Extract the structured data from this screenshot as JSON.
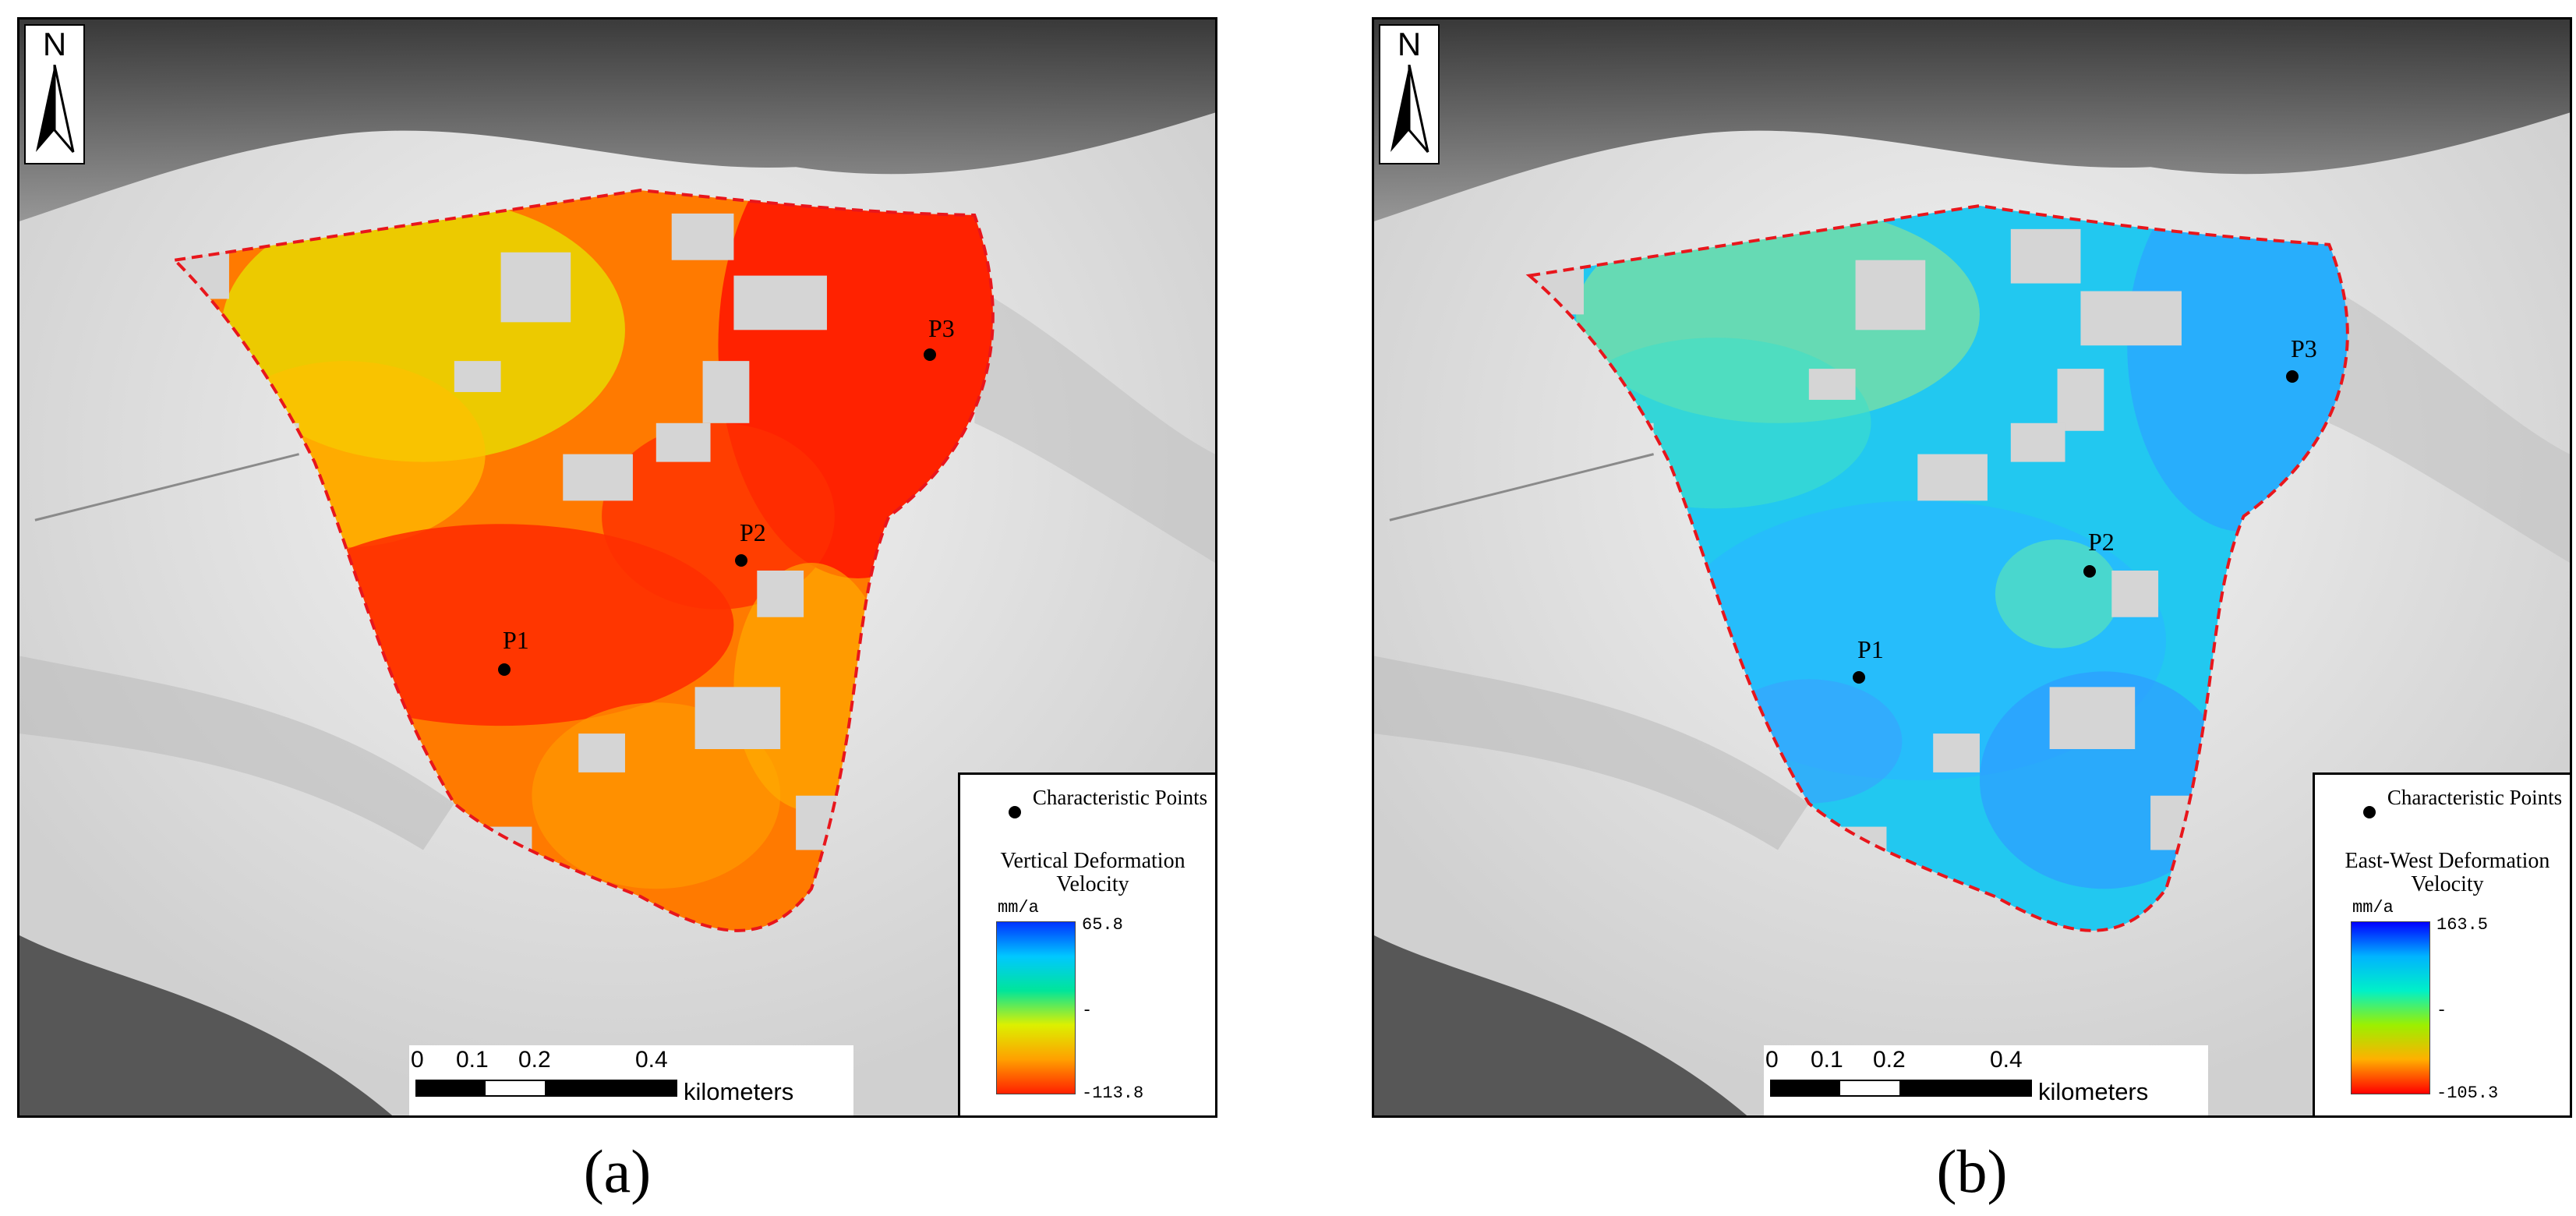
{
  "panels": [
    {
      "id": "a",
      "label": "(a)",
      "legend": {
        "points_label": "Characteristic Points",
        "title": "Vertical Deformation Velocity",
        "unit": "mm/a",
        "max": "65.8",
        "min": "-113.8",
        "ramp_colors": [
          "#0033ff",
          "#00c8ff",
          "#00e59a",
          "#dcf000",
          "#ffa000",
          "#ff2000"
        ]
      },
      "points": [
        {
          "name": "P1",
          "x": 0.195,
          "y": 0.298
        },
        {
          "name": "P2",
          "x": 0.289,
          "y": 0.253
        },
        {
          "name": "P3",
          "x": 0.375,
          "y": 0.153
        }
      ],
      "color_scheme": "warm"
    },
    {
      "id": "b",
      "label": "(b)",
      "legend": {
        "points_label": "Characteristic Points",
        "title": "East-West Deformation Velocity",
        "unit": "mm/a",
        "max": "163.5",
        "min": "-105.3",
        "ramp_colors": [
          "#0000ff",
          "#00b4ff",
          "#00f0c8",
          "#9cf000",
          "#ffb000",
          "#ff0000"
        ]
      },
      "points": [
        {
          "name": "P1",
          "x": 0.195,
          "y": 0.298
        },
        {
          "name": "P2",
          "x": 0.289,
          "y": 0.253
        },
        {
          "name": "P3",
          "x": 0.375,
          "y": 0.153
        }
      ],
      "color_scheme": "cool"
    }
  ],
  "scalebar": {
    "ticks": [
      "0",
      "0.1",
      "0.2",
      "0.4"
    ],
    "unit_label": "kilometers"
  },
  "north_arrow": {
    "letter": "N",
    "icon": "north-arrow-icon"
  },
  "colors": {
    "boundary": "#e8161c",
    "hillshade_light": "#eeeeee",
    "hillshade_dark": "#2a2a2a"
  }
}
